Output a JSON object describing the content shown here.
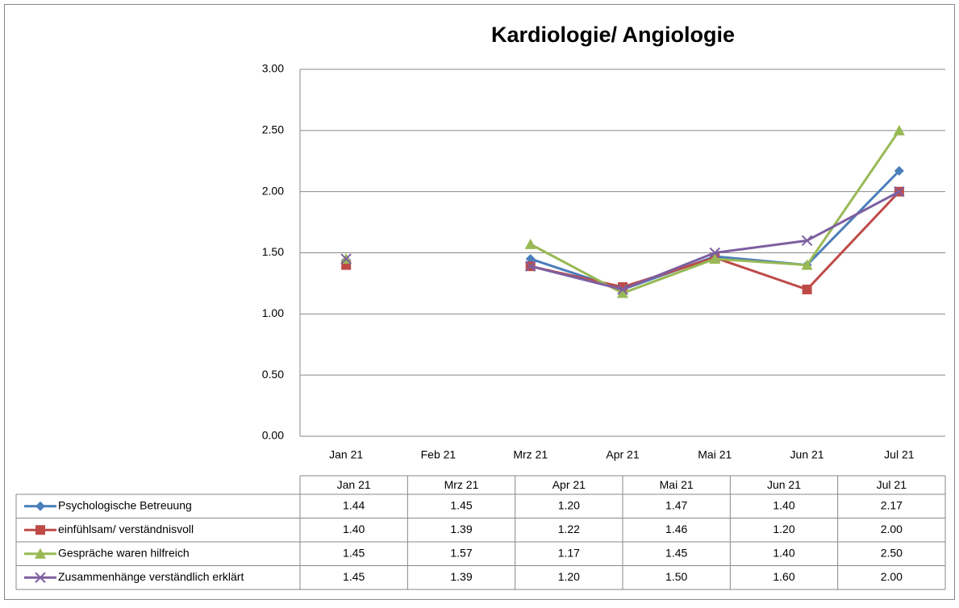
{
  "chart_data": {
    "type": "line",
    "title": "Kardiologie/ Angiologie",
    "categories": [
      "Jan 21",
      "Feb 21",
      "Mrz 21",
      "Apr 21",
      "Mai 21",
      "Jun 21",
      "Jul 21"
    ],
    "series": [
      {
        "name": "Psychologische  Betreuung",
        "color": "#4a7ebb",
        "marker": "diamond",
        "values": [
          1.44,
          null,
          1.45,
          1.2,
          1.47,
          1.4,
          2.17
        ],
        "value_labels": [
          "1.44",
          null,
          "1.45",
          "1.20",
          "1.47",
          "1.40",
          "2.17"
        ]
      },
      {
        "name": "einfühlsam/ verständnisvoll",
        "color": "#be4b48",
        "marker": "square",
        "values": [
          1.4,
          null,
          1.39,
          1.22,
          1.46,
          1.2,
          2
        ],
        "value_labels": [
          "1.40",
          null,
          "1.39",
          "1.22",
          "1.46",
          "1.20",
          "2.00"
        ]
      },
      {
        "name": "Gespräche waren hilfreich",
        "color": "#98b954",
        "marker": "triangle",
        "values": [
          1.45,
          null,
          1.57,
          1.17,
          1.45,
          1.4,
          2.5
        ],
        "value_labels": [
          "1.45",
          null,
          "1.57",
          "1.17",
          "1.45",
          "1.40",
          "2.50"
        ]
      },
      {
        "name": "Zusammenhänge verständlich erklärt",
        "color": "#7d5fa0",
        "marker": "x",
        "values": [
          1.45,
          null,
          1.39,
          1.2,
          1.5,
          1.6,
          2
        ],
        "value_labels": [
          "1.45",
          null,
          "1.39",
          "1.20",
          "1.50",
          "1.60",
          "2.00"
        ]
      }
    ],
    "ylim": [
      0,
      3
    ],
    "yticks": [
      {
        "value": 0,
        "label": "0.00"
      },
      {
        "value": 0.5,
        "label": "0.50"
      },
      {
        "value": 1,
        "label": "1.00"
      },
      {
        "value": 1.5,
        "label": "1.50"
      },
      {
        "value": 2,
        "label": "2.00"
      },
      {
        "value": 2.5,
        "label": "2.50"
      },
      {
        "value": 3,
        "label": "3.00"
      }
    ],
    "grid": true
  }
}
